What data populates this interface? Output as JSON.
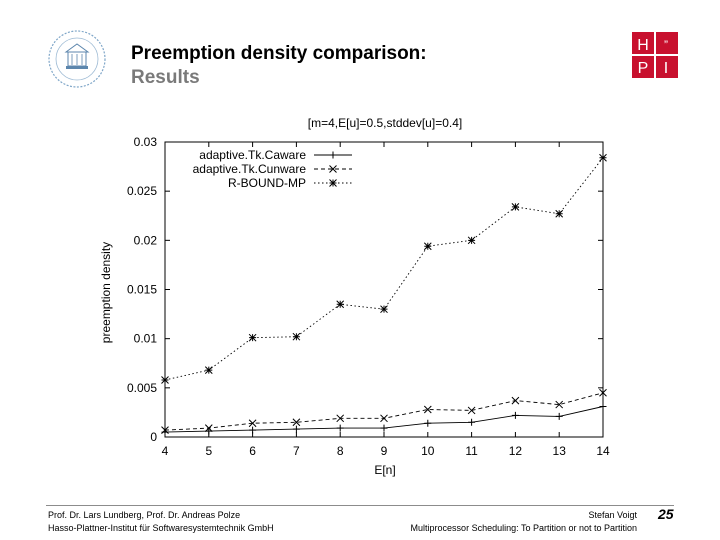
{
  "slide": {
    "title": "Preemption density comparison:",
    "subtitle": "Results",
    "page_number": "25"
  },
  "footer": {
    "authors": "Prof. Dr. Lars Lundberg,  Prof. Dr. Andreas Polze",
    "institute": "Hasso-Plattner-Institut für Softwaresystemtechnik GmbH",
    "presenter": "Stefan Voigt",
    "talk": "Multiprocessor Scheduling: To Partition or not to Partition"
  },
  "logos": {
    "hpi_letters": [
      "H",
      "P",
      "I"
    ],
    "hpi_color": "#c8102e"
  },
  "chart_data": {
    "type": "line",
    "title": "[m=4,E[u]=0.5,stddev[u]=0.4]",
    "xlabel": "E[n]",
    "ylabel": "preemption density",
    "xlim": [
      4,
      14
    ],
    "ylim": [
      0,
      0.03
    ],
    "xticks": [
      "4",
      "5",
      "6",
      "7",
      "8",
      "9",
      "10",
      "11",
      "12",
      "13",
      "14"
    ],
    "yticks": [
      "0",
      "0.005",
      "0.01",
      "0.015",
      "0.02",
      "0.025",
      "0.03"
    ],
    "legend_position": "top-left",
    "grid": false,
    "x": [
      4,
      5,
      6,
      7,
      8,
      9,
      10,
      11,
      12,
      13,
      14
    ],
    "series": [
      {
        "name": "adaptive.Tk.Caware",
        "marker": "+",
        "dash": "solid",
        "values": [
          0.0005,
          0.0006,
          0.0007,
          0.0008,
          0.0009,
          0.0009,
          0.0014,
          0.0015,
          0.0022,
          0.0021,
          0.0031
        ]
      },
      {
        "name": "adaptive.Tk.Cunware",
        "marker": "x",
        "dash": "dashed",
        "values": [
          0.0007,
          0.0009,
          0.0014,
          0.0015,
          0.0019,
          0.0019,
          0.0028,
          0.0027,
          0.0037,
          0.0033,
          0.0045
        ]
      },
      {
        "name": "R-BOUND-MP",
        "marker": "*",
        "dash": "dotted",
        "values": [
          0.0058,
          0.0068,
          0.0101,
          0.0102,
          0.0135,
          0.013,
          0.0194,
          0.02,
          0.0234,
          0.0227,
          0.0284
        ]
      }
    ]
  }
}
